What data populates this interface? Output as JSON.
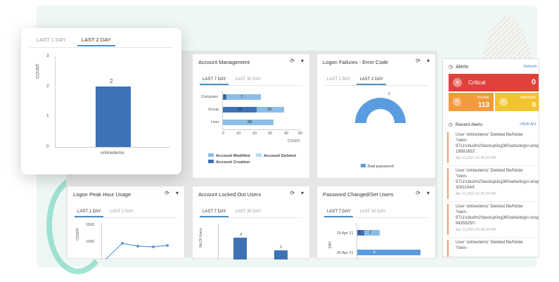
{
  "float_card": {
    "tabs": [
      "LAST 1 DAY",
      "LAST 2 DAY"
    ],
    "ylabel": "COUNT",
    "yticks": [
      "3",
      "2",
      "1",
      "0"
    ],
    "bar_value": "2",
    "category": "onlinedemo"
  },
  "account_management": {
    "title": "Account Management",
    "tabs": [
      "LAST 7 DAY",
      "LAST 30 DAY"
    ],
    "rows": [
      {
        "label": "Computer",
        "seg1": "1",
        "seg2": "7"
      },
      {
        "label": "Group",
        "seg1": "10",
        "seg2": "19"
      },
      {
        "label": "User",
        "seg1": "",
        "seg2": "28"
      }
    ],
    "xticks": [
      "0",
      "10",
      "20",
      "30",
      "40",
      "50"
    ],
    "xlabel": "COUNT",
    "legend": [
      "Account Modified",
      "Account Deleted",
      "Account Creation"
    ]
  },
  "logon_failures": {
    "title": "Logon Failures - Error Code",
    "tabs": [
      "LAST 1 DAY",
      "LAST 2 DAY"
    ],
    "value": "2",
    "legend": "Bad password"
  },
  "logon_peak": {
    "title": "Logon Peak Hour Usage",
    "tabs": [
      "LAST 1 DAY",
      "LAST 2 DAY"
    ],
    "ylabel": "COUNT",
    "yticks": [
      "1500",
      "1000"
    ]
  },
  "locked_out": {
    "title": "Account Locked Out Users",
    "tabs": [
      "LAST 7 DAY",
      "LAST 30 DAY"
    ],
    "ylabel": "No.Of Users",
    "bar1": "4",
    "bar2": "3"
  },
  "password_changed": {
    "title": "Password Changed/Set Users",
    "tabs": [
      "LAST 7 DAY",
      "LAST 30 DAY"
    ],
    "ylabel": "DAY",
    "rows": [
      {
        "label": "19 Apr 21",
        "seg1": "5",
        "seg2": "2"
      },
      {
        "label": "20 Apr 21",
        "seg1": "",
        "seg2": "5"
      }
    ]
  },
  "alerts": {
    "title": "Alerts",
    "refresh": "Refresh",
    "critical_label": "Critical",
    "critical_count": "0",
    "trouble_label": "Trouble",
    "trouble_count": "113",
    "attention_label": "Attention",
    "attention_count": "0",
    "recent_title": "Recent Alerts",
    "view_all": "VIEW ALL",
    "items": [
      {
        "lines": [
          "User 'onlinedemo' Deleted file/folder",
          "'\\\\iwin-",
          "97s1\\cbudm2\\backup\\log360ueba\\logs\\.wrap",
          "18691653'."
        ],
        "time": "Apr 21,2021 01:40:29 PM"
      },
      {
        "lines": [
          "User 'onlinedemo' Deleted file/folder",
          "'\\\\iwin-",
          "97s1\\cbudm2\\backup\\log360ueba\\logs\\.wrap",
          "30411644'."
        ],
        "time": "Apr 21,2021 01:40:29 PM"
      },
      {
        "lines": [
          "User 'onlinedemo' Deleted file/folder",
          "'\\\\iwin-",
          "97s1\\cbudm2\\backup\\log360ueba\\logs\\.wrap",
          "94358250'."
        ],
        "time": "Apr 21,2021 01:40:29 PM"
      },
      {
        "lines": [
          "User 'onlinedemo' Deleted file/folder",
          "'\\\\iwin-"
        ],
        "time": ""
      }
    ]
  },
  "colors": {
    "primary_blue": "#4a7fc0",
    "light_blue": "#8cbde6",
    "critical_red": "#e0413b",
    "trouble_orange": "#f39a3c",
    "attention_yellow": "#f2c431"
  }
}
